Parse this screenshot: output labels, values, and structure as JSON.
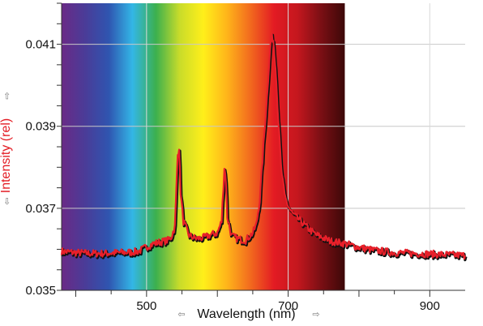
{
  "chart_data": {
    "type": "line",
    "title": "",
    "xlabel": "Wavelength (nm)",
    "ylabel": "Intensity (rel)",
    "xlim": [
      380,
      950
    ],
    "ylim": [
      0.035,
      0.042
    ],
    "x_ticks": [
      500,
      700,
      900
    ],
    "x_tick_labels": [
      "500",
      "700",
      "900"
    ],
    "y_ticks": [
      0.035,
      0.037,
      0.039,
      0.041
    ],
    "y_tick_labels": [
      "0.035",
      "0.037",
      "0.039",
      "0.041"
    ],
    "grid": true,
    "background": "visible-spectrum gradient from 380 nm to 780 nm",
    "spectrum_range": [
      380,
      780
    ],
    "spectrum_colors": [
      "#6a2a86",
      "#4a3c98",
      "#2f55b0",
      "#33b6e6",
      "#3cb04e",
      "#c9dc2a",
      "#ffef1a",
      "#ffb51a",
      "#f26a1e",
      "#e31b23",
      "#c4171e",
      "#7a0f14",
      "#3c0808"
    ],
    "series": [
      {
        "color": "#e8202a",
        "outline_color": "#111111",
        "x": [
          380,
          400,
          420,
          440,
          460,
          480,
          490,
          500,
          510,
          520,
          530,
          535,
          540,
          544,
          546,
          548,
          552,
          560,
          570,
          580,
          590,
          600,
          606,
          610,
          612,
          614,
          620,
          630,
          640,
          650,
          655,
          660,
          665,
          670,
          673,
          676,
          679,
          682,
          686,
          690,
          695,
          700,
          705,
          710,
          720,
          730,
          740,
          760,
          780,
          800,
          820,
          850,
          880,
          910,
          950
        ],
        "y": [
          0.03595,
          0.03592,
          0.0359,
          0.0359,
          0.03592,
          0.03593,
          0.03596,
          0.03606,
          0.03614,
          0.03618,
          0.03622,
          0.0363,
          0.03655,
          0.0383,
          0.0385,
          0.0374,
          0.03668,
          0.03634,
          0.03626,
          0.03628,
          0.03635,
          0.0364,
          0.03668,
          0.038,
          0.0377,
          0.0368,
          0.03633,
          0.03625,
          0.03622,
          0.0364,
          0.0366,
          0.0372,
          0.0385,
          0.0397,
          0.0405,
          0.0412,
          0.0411,
          0.0405,
          0.0392,
          0.038,
          0.0373,
          0.03705,
          0.0369,
          0.0368,
          0.03665,
          0.03648,
          0.03635,
          0.0362,
          0.03614,
          0.03605,
          0.03598,
          0.03592,
          0.0359,
          0.03588,
          0.03585
        ]
      }
    ]
  }
}
